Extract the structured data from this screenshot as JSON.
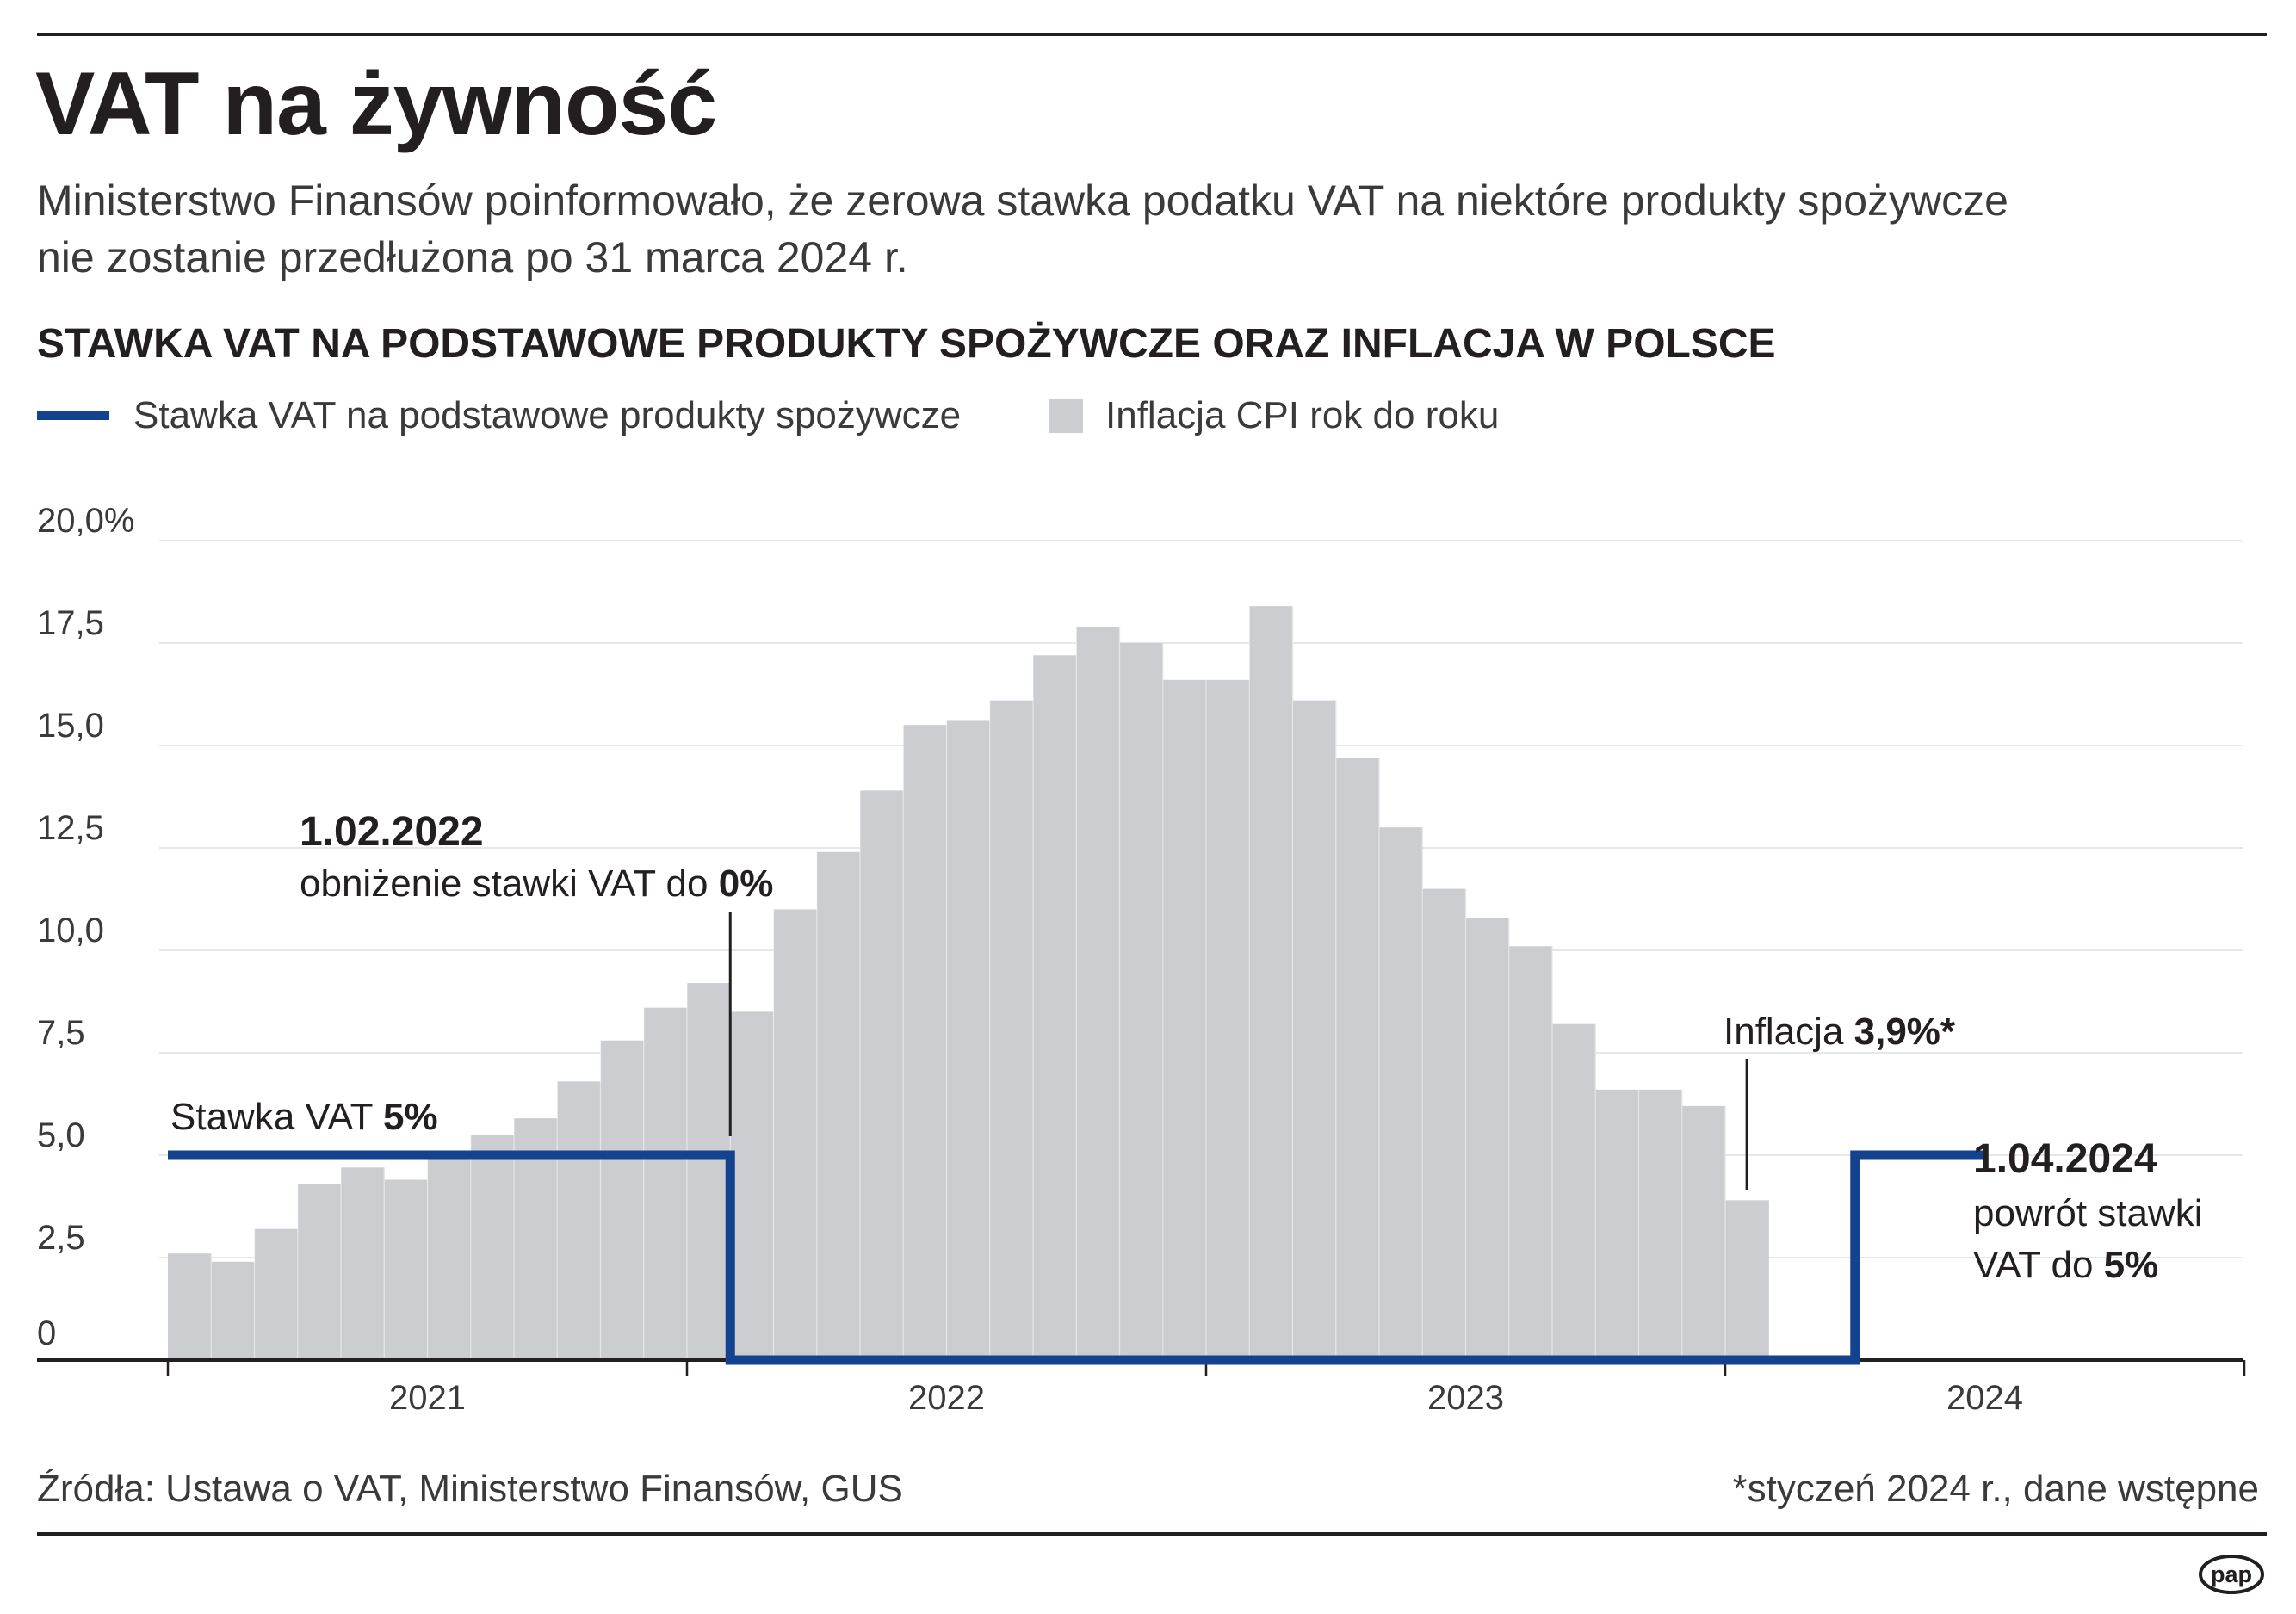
{
  "header": {
    "title": "VAT na żywność",
    "subtitle_lines": [
      "Ministerstwo Finansów poinformowało, że zerowa stawka podatku VAT na niektóre produkty spożywcze",
      "nie zostanie przedłużona po 31 marca 2024 r."
    ]
  },
  "chart_data": {
    "type": "bar",
    "title": "STAWKA VAT NA PODSTAWOWE PRODUKTY SPOŻYWCZE ORAZ INFLACJA W POLSCE",
    "xlabel": "",
    "ylabel": "",
    "ylim": [
      0,
      20
    ],
    "y_ticks": [
      {
        "value": 20,
        "label": "20,0%"
      },
      {
        "value": 17.5,
        "label": "17,5"
      },
      {
        "value": 15,
        "label": "15,0"
      },
      {
        "value": 12.5,
        "label": "12,5"
      },
      {
        "value": 10,
        "label": "10,0"
      },
      {
        "value": 7.5,
        "label": "7,5"
      },
      {
        "value": 5,
        "label": "5,0"
      },
      {
        "value": 2.5,
        "label": "2,5"
      },
      {
        "value": 0,
        "label": "0"
      }
    ],
    "grid": true,
    "years": [
      "2021",
      "2022",
      "2023",
      "2024"
    ],
    "legend": [
      {
        "label": "Stawka VAT na podstawowe produkty spożywcze",
        "kind": "line",
        "color": "#13428f"
      },
      {
        "label": "Inflacja CPI rok do roku",
        "kind": "bar",
        "color": "#cbcdd0"
      }
    ],
    "series": [
      {
        "name": "Inflacja CPI rok do roku",
        "kind": "bar",
        "color": "#cbcdd0",
        "start": "2021-01",
        "values": [
          2.6,
          2.4,
          3.2,
          4.3,
          4.7,
          4.4,
          5.0,
          5.5,
          5.9,
          6.8,
          7.8,
          8.6,
          9.2,
          8.5,
          11.0,
          12.4,
          13.9,
          15.5,
          15.6,
          16.1,
          17.2,
          17.9,
          17.5,
          16.6,
          16.6,
          18.4,
          16.1,
          14.7,
          13.0,
          11.5,
          10.8,
          10.1,
          8.2,
          6.6,
          6.6,
          6.2,
          3.9
        ]
      },
      {
        "name": "Stawka VAT na podstawowe produkty spożywcze",
        "kind": "step-line",
        "color": "#13428f",
        "points": [
          {
            "date": "2021-01",
            "value": 5
          },
          {
            "date": "2022-02",
            "value": 0
          },
          {
            "date": "2024-04",
            "value": 5
          },
          {
            "date": "2024-07",
            "value": 5
          }
        ]
      }
    ],
    "annotations": [
      {
        "id": "vat5",
        "parts": [
          {
            "text": "Stawka VAT ",
            "bold": false
          },
          {
            "text": "5%",
            "bold": true
          }
        ]
      },
      {
        "id": "feb2022_date",
        "parts": [
          {
            "text": "1.02.2022",
            "bold": true
          }
        ]
      },
      {
        "id": "feb2022_desc",
        "parts": [
          {
            "text": "obniżenie stawki VAT do ",
            "bold": false
          },
          {
            "text": "0%",
            "bold": true
          }
        ]
      },
      {
        "id": "infl",
        "parts": [
          {
            "text": "Inflacja ",
            "bold": false
          },
          {
            "text": "3,9%*",
            "bold": true
          }
        ]
      },
      {
        "id": "apr2024_date",
        "parts": [
          {
            "text": "1.04.2024",
            "bold": true
          }
        ]
      },
      {
        "id": "apr2024_desc1",
        "parts": [
          {
            "text": "powrót stawki",
            "bold": false
          }
        ]
      },
      {
        "id": "apr2024_desc2",
        "parts": [
          {
            "text": "VAT do ",
            "bold": false
          },
          {
            "text": "5%",
            "bold": true
          }
        ]
      }
    ]
  },
  "footer": {
    "source": "Źródła: Ustawa o VAT, Ministerstwo Finansów, GUS",
    "note": "*styczeń 2024 r., dane wstępne"
  },
  "brand": {
    "logo_text": "pap"
  },
  "colors": {
    "vat_line": "#13428f",
    "cpi_bars": "#cbcdd0",
    "text": "#231f20"
  }
}
